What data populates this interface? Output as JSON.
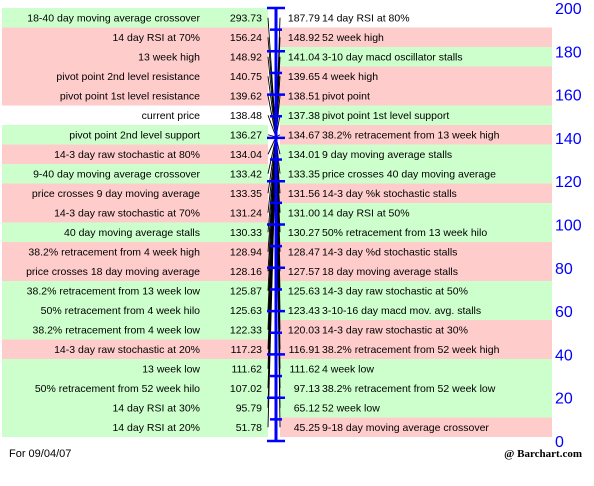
{
  "footer": {
    "date_label": "For 09/04/07",
    "brand": "@ Barchart.com"
  },
  "colors": {
    "green_row": "#ccffcc",
    "red_row": "#ffcccc",
    "white_row": "#ffffff",
    "axis": "#0000ff",
    "line": "#000000"
  },
  "chart_data": {
    "type": "table",
    "axis_ticks": [
      200,
      180,
      160,
      140,
      120,
      100,
      80,
      60,
      40,
      20,
      0
    ],
    "ylim": [
      0,
      200
    ],
    "pivot_value": 138.48,
    "left": [
      {
        "label": "18-40 day moving average crossover",
        "value": "293.73",
        "color": "green"
      },
      {
        "label": "14 day RSI at 70%",
        "value": "156.24",
        "color": "red"
      },
      {
        "label": "13 week high",
        "value": "148.92",
        "color": "red"
      },
      {
        "label": "pivot point 2nd level resistance",
        "value": "140.75",
        "color": "red"
      },
      {
        "label": "pivot point 1st level resistance",
        "value": "139.62",
        "color": "red"
      },
      {
        "label": "current price",
        "value": "138.48",
        "color": "white"
      },
      {
        "label": "pivot point 2nd level support",
        "value": "136.27",
        "color": "green"
      },
      {
        "label": "14-3 day raw stochastic at 80%",
        "value": "134.04",
        "color": "red"
      },
      {
        "label": "9-40 day moving average crossover",
        "value": "133.42",
        "color": "green"
      },
      {
        "label": "price crosses 9 day moving average",
        "value": "133.35",
        "color": "red"
      },
      {
        "label": "14-3 day raw stochastic at 70%",
        "value": "131.24",
        "color": "red"
      },
      {
        "label": "40 day moving average stalls",
        "value": "130.33",
        "color": "green"
      },
      {
        "label": "38.2% retracement from 4 week high",
        "value": "128.94",
        "color": "red"
      },
      {
        "label": "price crosses 18 day moving average",
        "value": "128.16",
        "color": "red"
      },
      {
        "label": "38.2% retracement from 13 week low",
        "value": "125.87",
        "color": "green"
      },
      {
        "label": "50% retracement from 4 week hilo",
        "value": "125.63",
        "color": "green"
      },
      {
        "label": "38.2% retracement from 4 week low",
        "value": "122.33",
        "color": "green"
      },
      {
        "label": "14-3 day raw stochastic at 20%",
        "value": "117.23",
        "color": "red"
      },
      {
        "label": "13 week low",
        "value": "111.62",
        "color": "green"
      },
      {
        "label": "50% retracement from 52 week hilo",
        "value": "107.02",
        "color": "green"
      },
      {
        "label": "14 day RSI at 30%",
        "value": "95.79",
        "color": "green"
      },
      {
        "label": "14 day RSI at 20%",
        "value": "51.78",
        "color": "green"
      }
    ],
    "right": [
      {
        "label": "14 day RSI at 80%",
        "value": "187.79",
        "color": "white"
      },
      {
        "label": "52 week high",
        "value": "148.92",
        "color": "red"
      },
      {
        "label": "3-10 day macd oscillator stalls",
        "value": "141.04",
        "color": "green"
      },
      {
        "label": "4 week high",
        "value": "139.65",
        "color": "red"
      },
      {
        "label": "pivot point",
        "value": "138.51",
        "color": "red"
      },
      {
        "label": "pivot point 1st level support",
        "value": "137.38",
        "color": "green"
      },
      {
        "label": "38.2% retracement from 13 week high",
        "value": "134.67",
        "color": "red"
      },
      {
        "label": "9 day moving average stalls",
        "value": "134.01",
        "color": "green"
      },
      {
        "label": "price crosses 40 day moving average",
        "value": "133.35",
        "color": "green"
      },
      {
        "label": "14-3 day %k stochastic stalls",
        "value": "131.56",
        "color": "red"
      },
      {
        "label": "14 day RSI at 50%",
        "value": "131.00",
        "color": "green"
      },
      {
        "label": "50% retracement from 13 week hilo",
        "value": "130.27",
        "color": "green"
      },
      {
        "label": "14-3 day %d stochastic stalls",
        "value": "128.47",
        "color": "red"
      },
      {
        "label": "18 day moving average stalls",
        "value": "127.57",
        "color": "red"
      },
      {
        "label": "14-3 day raw stochastic at 50%",
        "value": "125.63",
        "color": "green"
      },
      {
        "label": "3-10-16 day macd mov. avg. stalls",
        "value": "123.43",
        "color": "green"
      },
      {
        "label": "14-3 day raw stochastic at 30%",
        "value": "120.03",
        "color": "red"
      },
      {
        "label": "38.2% retracement from 52 week high",
        "value": "116.91",
        "color": "red"
      },
      {
        "label": "4 week low",
        "value": "111.62",
        "color": "green"
      },
      {
        "label": "38.2% retracement from 52 week low",
        "value": "97.13",
        "color": "green"
      },
      {
        "label": "52 week low",
        "value": "65.12",
        "color": "green"
      },
      {
        "label": "9-18 day moving average crossover",
        "value": "45.25",
        "color": "red"
      }
    ]
  }
}
